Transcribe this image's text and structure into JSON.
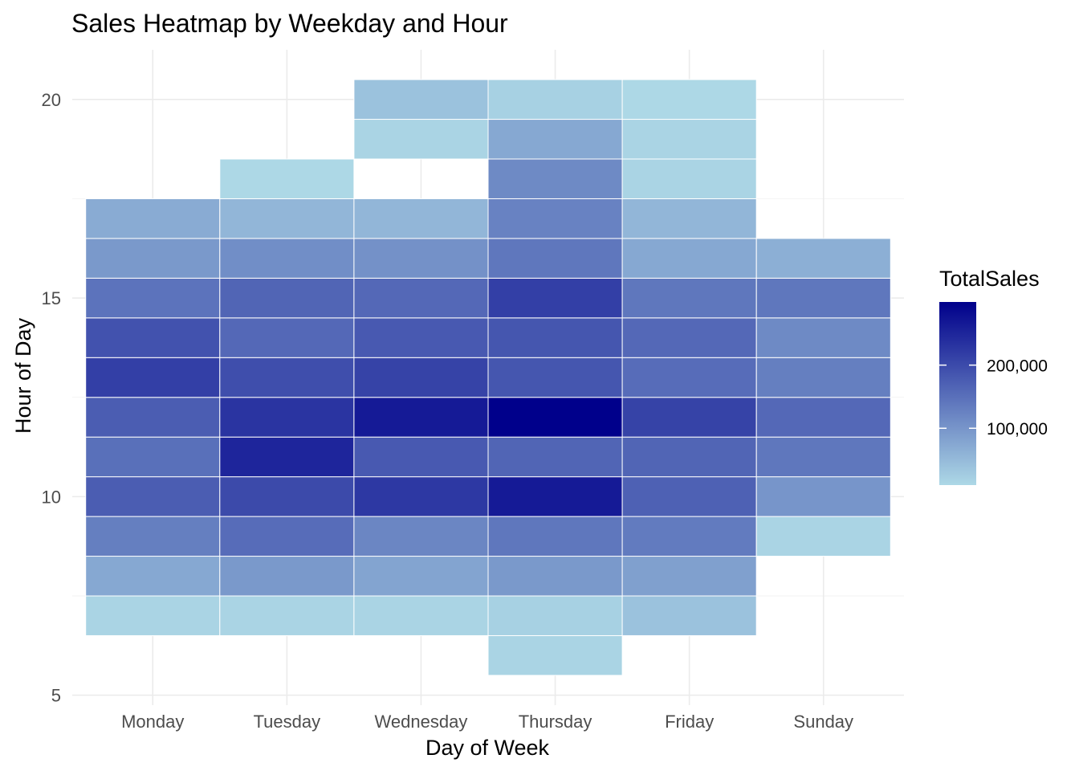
{
  "chart_data": {
    "type": "heatmap",
    "title": "Sales Heatmap by Weekday and Hour",
    "xlabel": "Day of Week",
    "ylabel": "Hour of Day",
    "x_categories": [
      "Monday",
      "Tuesday",
      "Wednesday",
      "Thursday",
      "Friday",
      "Sunday"
    ],
    "y_ticks": [
      5,
      10,
      15,
      20
    ],
    "ylim": [
      4.75,
      21.25
    ],
    "grid": true,
    "legend": {
      "title": "TotalSales",
      "placement": "right",
      "labels": [
        "200,000",
        "100,000"
      ],
      "label_values": [
        200000,
        100000
      ],
      "min": 10000,
      "max": 300000,
      "low_color": "#add8e6",
      "high_color": "#00008b"
    },
    "cells": [
      {
        "day": "Monday",
        "values": {
          "7": 15000,
          "8": 75000,
          "9": 130000,
          "10": 175000,
          "11": 150000,
          "12": 175000,
          "13": 215000,
          "14": 190000,
          "15": 145000,
          "16": 95000,
          "17": 70000
        }
      },
      {
        "day": "Tuesday",
        "values": {
          "7": 15000,
          "8": 95000,
          "9": 155000,
          "10": 200000,
          "11": 250000,
          "12": 230000,
          "13": 195000,
          "14": 160000,
          "15": 165000,
          "16": 110000,
          "17": 55000,
          "18": 10000
        }
      },
      {
        "day": "Wednesday",
        "values": {
          "7": 15000,
          "8": 80000,
          "9": 120000,
          "10": 225000,
          "11": 180000,
          "12": 265000,
          "13": 210000,
          "14": 180000,
          "15": 160000,
          "16": 105000,
          "17": 55000,
          "19": 15000,
          "20": 40000
        }
      },
      {
        "day": "Thursday",
        "values": {
          "6": 15000,
          "7": 20000,
          "8": 95000,
          "9": 140000,
          "10": 265000,
          "11": 165000,
          "12": 300000,
          "13": 185000,
          "14": 185000,
          "15": 215000,
          "16": 140000,
          "17": 125000,
          "18": 115000,
          "19": 75000,
          "20": 20000
        }
      },
      {
        "day": "Friday",
        "values": {
          "7": 40000,
          "8": 85000,
          "9": 135000,
          "10": 170000,
          "11": 165000,
          "12": 210000,
          "13": 155000,
          "14": 160000,
          "15": 140000,
          "16": 75000,
          "17": 55000,
          "18": 15000,
          "19": 15000,
          "20": 10000
        }
      },
      {
        "day": "Sunday",
        "values": {
          "9": 15000,
          "10": 100000,
          "11": 140000,
          "12": 160000,
          "13": 130000,
          "14": 115000,
          "15": 140000,
          "16": 65000
        }
      }
    ]
  }
}
